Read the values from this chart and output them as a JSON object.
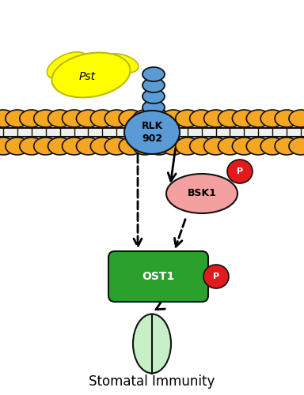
{
  "figure_width": 3.84,
  "figure_height": 5.0,
  "dpi": 100,
  "background_color": "#ffffff",
  "title": "Stomatal Immunity",
  "title_fontsize": 12,
  "membrane_color": "#f5a623",
  "outline": "#111111",
  "rlk_label": "RLK\n902",
  "rlk_color": "#5b9bd5",
  "bsk1_label": "BSK1",
  "bsk1_color": "#f4a0a0",
  "ost1_label": "OST1",
  "ost1_color": "#2ca02c",
  "phospho_color": "#e31a1c",
  "pst_label": "Pst",
  "pst_color": "#ffff00",
  "stomata_color": "#c8f0c8"
}
